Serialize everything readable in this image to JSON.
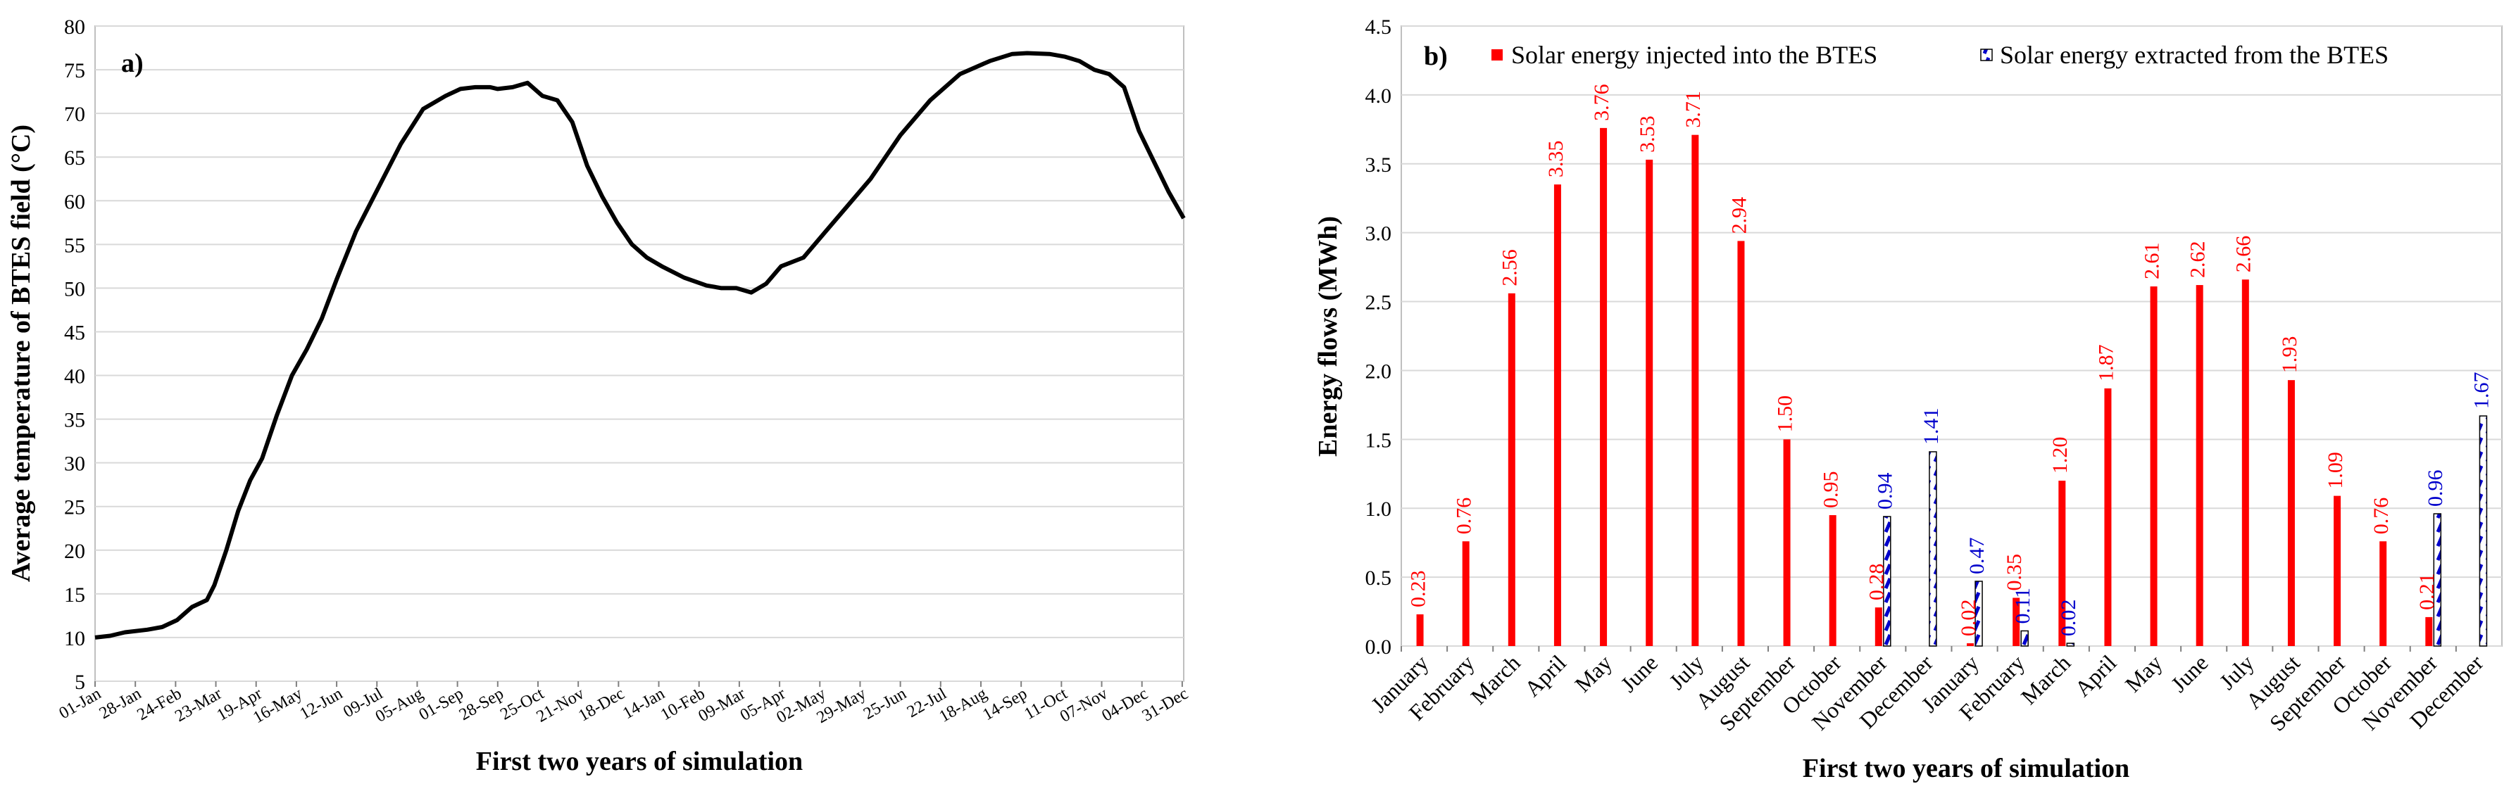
{
  "chart_data": [
    {
      "type": "line",
      "panel_label": "a)",
      "title": "",
      "xlabel": "First two years of simulation",
      "ylabel": "Average temperature of BTES field (°C)",
      "ylim": [
        5,
        80
      ],
      "y_ticks": [
        5,
        10,
        15,
        20,
        25,
        30,
        35,
        40,
        45,
        50,
        55,
        60,
        65,
        70,
        75,
        80
      ],
      "xlim": [
        0,
        730
      ],
      "x_ticks": [
        {
          "day": 0,
          "label": "01-Jan"
        },
        {
          "day": 27,
          "label": "28-Jan"
        },
        {
          "day": 54,
          "label": "24-Feb"
        },
        {
          "day": 81,
          "label": "23-Mar"
        },
        {
          "day": 108,
          "label": "19-Apr"
        },
        {
          "day": 135,
          "label": "16-May"
        },
        {
          "day": 162,
          "label": "12-Jun"
        },
        {
          "day": 189,
          "label": "09-Jul"
        },
        {
          "day": 216,
          "label": "05-Aug"
        },
        {
          "day": 243,
          "label": "01-Sep"
        },
        {
          "day": 270,
          "label": "28-Sep"
        },
        {
          "day": 297,
          "label": "25-Oct"
        },
        {
          "day": 324,
          "label": "21-Nov"
        },
        {
          "day": 351,
          "label": "18-Dec"
        },
        {
          "day": 378,
          "label": "14-Jan"
        },
        {
          "day": 405,
          "label": "10-Feb"
        },
        {
          "day": 432,
          "label": "09-Mar"
        },
        {
          "day": 459,
          "label": "05-Apr"
        },
        {
          "day": 486,
          "label": "02-May"
        },
        {
          "day": 513,
          "label": "29-May"
        },
        {
          "day": 540,
          "label": "25-Jun"
        },
        {
          "day": 567,
          "label": "22-Jul"
        },
        {
          "day": 594,
          "label": "18-Aug"
        },
        {
          "day": 621,
          "label": "14-Sep"
        },
        {
          "day": 648,
          "label": "11-Oct"
        },
        {
          "day": 675,
          "label": "07-Nov"
        },
        {
          "day": 702,
          "label": "04-Dec"
        },
        {
          "day": 729,
          "label": "31-Dec"
        }
      ],
      "grid": true,
      "series": [
        {
          "name": "Average temperature of BTES field",
          "color": "#000000",
          "x": [
            0,
            10,
            20,
            35,
            45,
            55,
            65,
            75,
            80,
            88,
            96,
            104,
            112,
            122,
            132,
            142,
            152,
            162,
            175,
            190,
            205,
            220,
            235,
            245,
            255,
            265,
            270,
            280,
            290,
            300,
            310,
            320,
            330,
            340,
            350,
            360,
            370,
            380,
            395,
            410,
            420,
            430,
            440,
            450,
            460,
            475,
            490,
            505,
            520,
            540,
            560,
            580,
            600,
            615,
            625,
            640,
            650,
            660,
            670,
            680,
            690,
            700,
            710,
            720,
            730
          ],
          "y": [
            10.0,
            10.2,
            10.6,
            10.9,
            11.2,
            12.0,
            13.5,
            14.3,
            16.0,
            20.0,
            24.5,
            28.0,
            30.5,
            35.5,
            40.0,
            43.0,
            46.5,
            51.0,
            56.5,
            61.5,
            66.5,
            70.5,
            72.0,
            72.8,
            73.0,
            73.0,
            72.8,
            73.0,
            73.5,
            72.0,
            71.5,
            69.0,
            64.0,
            60.5,
            57.5,
            55.0,
            53.5,
            52.5,
            51.2,
            50.3,
            50.0,
            50.0,
            49.5,
            50.5,
            52.5,
            53.5,
            56.5,
            59.5,
            62.5,
            67.5,
            71.5,
            74.5,
            76.0,
            76.8,
            76.9,
            76.8,
            76.5,
            76.0,
            75.0,
            74.5,
            73.0,
            68.0,
            64.5,
            61.0,
            58.0
          ]
        }
      ]
    },
    {
      "type": "bar",
      "panel_label": "b)",
      "title": "",
      "xlabel": "First two years of simulation",
      "ylabel": "Energy flows (MWh)",
      "ylim": [
        0,
        4.5
      ],
      "y_ticks": [
        "0.0",
        "0.5",
        "1.0",
        "1.5",
        "2.0",
        "2.5",
        "3.0",
        "3.5",
        "4.0",
        "4.5"
      ],
      "categories": [
        "January",
        "February",
        "March",
        "April",
        "May",
        "June",
        "July",
        "August",
        "September",
        "October",
        "November",
        "December",
        "January",
        "February",
        "March",
        "April",
        "May",
        "June",
        "July",
        "August",
        "September",
        "October",
        "November",
        "December"
      ],
      "legend_position": "top",
      "grid": true,
      "series": [
        {
          "name": "Solar energy injected into the BTES",
          "color": "#ff0000",
          "values": [
            0.23,
            0.76,
            2.56,
            3.35,
            3.76,
            3.53,
            3.71,
            2.94,
            1.5,
            0.95,
            0.28,
            null,
            0.02,
            0.35,
            1.2,
            1.87,
            2.61,
            2.62,
            2.66,
            1.93,
            1.09,
            0.76,
            0.21,
            null
          ],
          "labels": [
            "0.23",
            "0.76",
            "2.56",
            "3.35",
            "3.76",
            "3.53",
            "3.71",
            "2.94",
            "1.50",
            "0.95",
            "0.28",
            "",
            "0.02",
            "0.35",
            "1.20",
            "1.87",
            "2.61",
            "2.62",
            "2.66",
            "1.93",
            "1.09",
            "0.76",
            "0.21",
            ""
          ]
        },
        {
          "name": "Solar energy extracted from the BTES",
          "color": "#0000cc",
          "values": [
            null,
            null,
            null,
            null,
            null,
            null,
            null,
            null,
            null,
            null,
            0.94,
            1.41,
            0.47,
            0.11,
            0.02,
            null,
            null,
            null,
            null,
            null,
            null,
            null,
            0.96,
            1.67
          ],
          "labels": [
            "",
            "",
            "",
            "",
            "",
            "",
            "",
            "",
            "",
            "",
            "0.94",
            "1.41",
            "0.47",
            "0.11",
            "0.02",
            "",
            "",
            "",
            "",
            "",
            "",
            "",
            "0.96",
            "1.67"
          ]
        }
      ]
    }
  ]
}
